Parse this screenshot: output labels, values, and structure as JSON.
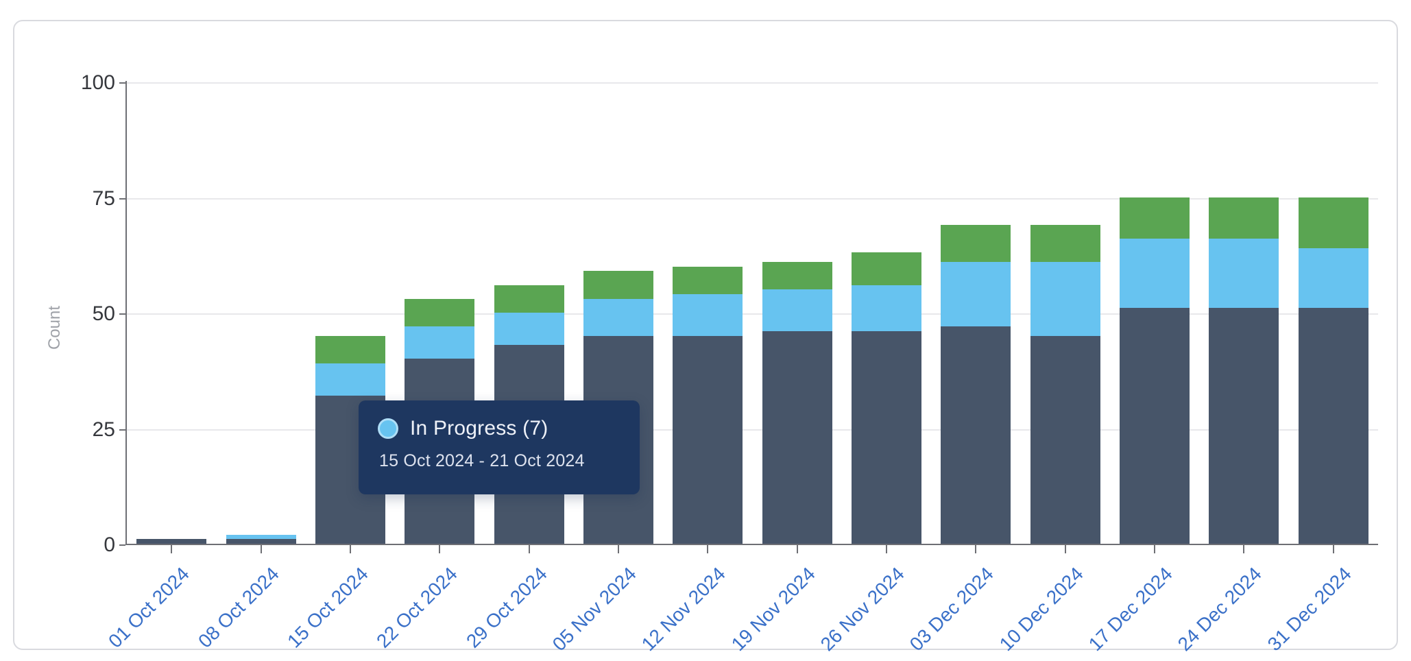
{
  "page": {
    "background": "#ffffff"
  },
  "card": {
    "background": "#ffffff",
    "border_color": "#d9dadf"
  },
  "chart_data": {
    "type": "bar",
    "stacked": true,
    "title": "",
    "xlabel": "",
    "ylabel": "Count",
    "ylim": [
      0,
      100
    ],
    "y_ticks": [
      0,
      25,
      50,
      75,
      100
    ],
    "grid": true,
    "legend": "none (series identified via hover tooltip)",
    "categories": [
      "01 Oct 2024",
      "08 Oct 2024",
      "15 Oct 2024",
      "22 Oct 2024",
      "29 Oct 2024",
      "05 Nov 2024",
      "12 Nov 2024",
      "19 Nov 2024",
      "26 Nov 2024",
      "03 Dec 2024",
      "10 Dec 2024",
      "17 Dec 2024",
      "24 Dec 2024",
      "31 Dec 2024"
    ],
    "series": [
      {
        "id": "bottom",
        "label": "",
        "color": "#475569",
        "values": [
          1,
          1,
          32,
          40,
          43,
          45,
          45,
          46,
          46,
          47,
          45,
          51,
          51,
          51
        ]
      },
      {
        "id": "middle",
        "label": "In Progress",
        "color": "#67c3f0",
        "values": [
          0,
          1,
          7,
          7,
          7,
          8,
          9,
          9,
          10,
          14,
          16,
          15,
          15,
          13
        ]
      },
      {
        "id": "top",
        "label": "",
        "color": "#5aa552",
        "values": [
          0,
          0,
          6,
          6,
          6,
          6,
          6,
          6,
          7,
          8,
          8,
          9,
          9,
          11
        ]
      }
    ],
    "totals": [
      1,
      2,
      45,
      53,
      56,
      59,
      60,
      61,
      63,
      69,
      69,
      75,
      75,
      75
    ],
    "colors": {
      "grid": "#e8e8eb",
      "axis": "#6e6f74",
      "y_tick_text": "#36383d",
      "x_tick_text": "#3a70c8",
      "y_axis_title_text": "#9fa2a8"
    }
  },
  "tooltip": {
    "series_label": "In Progress",
    "value": 7,
    "title": "In Progress (7)",
    "date_range": "15 Oct 2024 - 21 Oct 2024",
    "background": "#1e3760",
    "marker_color": "#67c3f0"
  }
}
